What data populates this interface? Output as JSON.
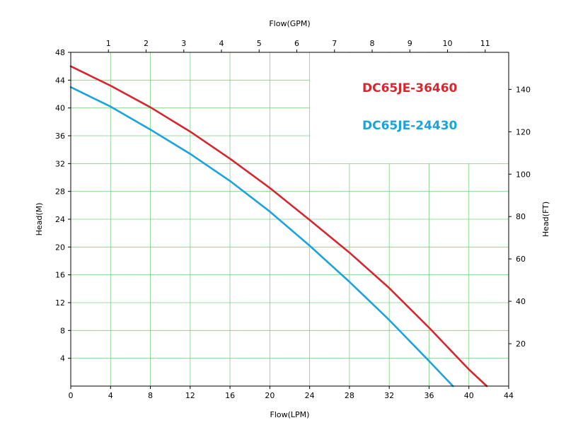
{
  "chart_data": {
    "type": "line",
    "title": "",
    "xlabel": "Flow(LPM)",
    "x2label": "Flow(GPM)",
    "ylabel": "Head(M)",
    "y2label": "Head(FT)",
    "xlim": [
      0,
      44
    ],
    "ylim": [
      0,
      48
    ],
    "x_ticks": [
      0,
      4,
      8,
      12,
      16,
      20,
      24,
      28,
      32,
      36,
      40,
      44
    ],
    "y_ticks": [
      4,
      8,
      12,
      16,
      20,
      24,
      28,
      32,
      36,
      40,
      44,
      48
    ],
    "x2_ticks": [
      1,
      2,
      3,
      4,
      5,
      6,
      7,
      8,
      9,
      10,
      11
    ],
    "y2_ticks": [
      20,
      40,
      60,
      80,
      100,
      120,
      140
    ],
    "grid": true,
    "legend_placement": "top-right",
    "series": [
      {
        "name": "DC65JE-36460",
        "color": "#d62730",
        "x": [
          0,
          4,
          8,
          12,
          16,
          20,
          24,
          28,
          32,
          36,
          40,
          41.8
        ],
        "y": [
          46,
          43.2,
          40.1,
          36.6,
          32.7,
          28.5,
          23.9,
          19.2,
          14.1,
          8.4,
          2.4,
          0
        ]
      },
      {
        "name": "DC65JE-24430",
        "color": "#1aa3dc",
        "x": [
          0,
          4,
          8,
          12,
          16,
          20,
          24,
          28,
          32,
          36,
          38.4
        ],
        "y": [
          43,
          40.2,
          36.9,
          33.4,
          29.5,
          25.1,
          20.2,
          15.0,
          9.5,
          3.6,
          0
        ]
      }
    ]
  }
}
